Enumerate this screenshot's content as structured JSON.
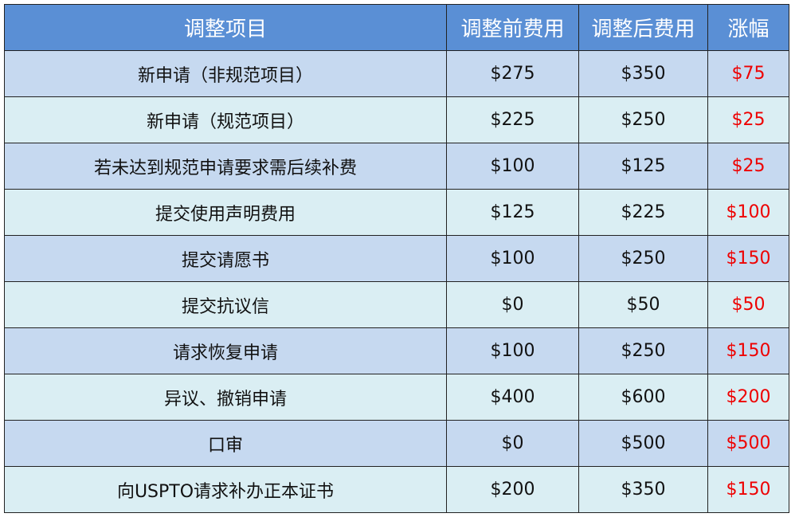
{
  "table": {
    "headers": [
      "调整项目",
      "调整前费用",
      "调整后费用",
      "涨幅"
    ],
    "rows": [
      [
        "新申请（非规范项目）",
        "$275",
        "$350",
        "$75"
      ],
      [
        "新申请（规范项目）",
        "$225",
        "$250",
        "$25"
      ],
      [
        "若未达到规范申请要求需后续补费",
        "$100",
        "$125",
        "$25"
      ],
      [
        "提交使用声明费用",
        "$125",
        "$225",
        "$100"
      ],
      [
        "提交请愿书",
        "$100",
        "$250",
        "$150"
      ],
      [
        "提交抗议信",
        "$0",
        "$50",
        "$50"
      ],
      [
        "请求恢复申请",
        "$100",
        "$250",
        "$150"
      ],
      [
        "异议、撤销申请",
        "$400",
        "$600",
        "$200"
      ],
      [
        "口审",
        "$0",
        "$500",
        "$500"
      ],
      [
        "向USPTO请求补办正本证书",
        "$200",
        "$350",
        "$150"
      ]
    ]
  }
}
